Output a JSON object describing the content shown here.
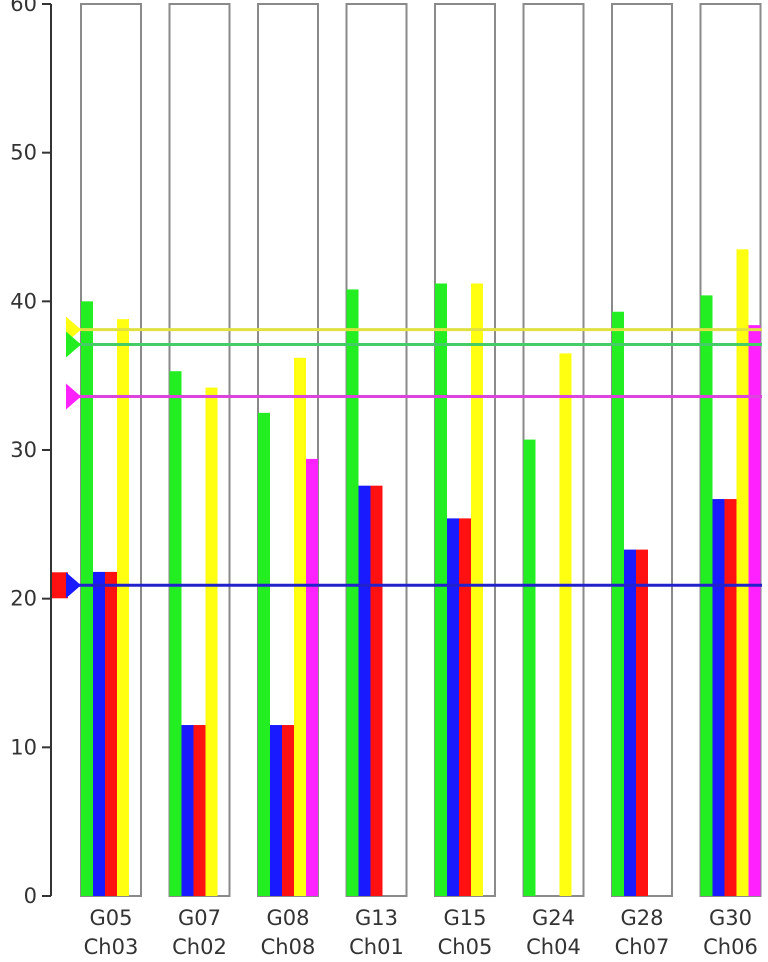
{
  "chart_data": {
    "type": "bar",
    "ylim": [
      0,
      60
    ],
    "yticks": [
      "0",
      "10",
      "20",
      "30",
      "40",
      "50",
      "60"
    ],
    "grid": false,
    "categories": [
      {
        "sat": "G05",
        "ch": "Ch03"
      },
      {
        "sat": "G07",
        "ch": "Ch02"
      },
      {
        "sat": "G08",
        "ch": "Ch08"
      },
      {
        "sat": "G13",
        "ch": "Ch01"
      },
      {
        "sat": "G15",
        "ch": "Ch05"
      },
      {
        "sat": "G24",
        "ch": "Ch04"
      },
      {
        "sat": "G28",
        "ch": "Ch07"
      },
      {
        "sat": "G30",
        "ch": "Ch06"
      }
    ],
    "series": [
      {
        "color": "#22ee22",
        "values": [
          40.0,
          35.3,
          32.5,
          40.8,
          41.2,
          30.7,
          39.3,
          40.4
        ]
      },
      {
        "color": "#1a1aff",
        "values": [
          21.8,
          11.5,
          11.5,
          27.6,
          25.4,
          null,
          23.3,
          26.7
        ]
      },
      {
        "color": "#ff1111",
        "values": [
          21.8,
          11.5,
          11.5,
          27.6,
          25.4,
          null,
          23.3,
          26.7
        ]
      },
      {
        "color": "#ffff11",
        "values": [
          38.8,
          34.2,
          36.2,
          null,
          41.2,
          36.5,
          null,
          43.5
        ]
      },
      {
        "color": "#ff22ff",
        "values": [
          null,
          null,
          29.4,
          null,
          null,
          null,
          null,
          38.4
        ]
      }
    ],
    "reference_lines": [
      {
        "color": "#e0e040",
        "value": 38.1
      },
      {
        "color": "#44cc66",
        "value": 37.1
      },
      {
        "color": "#dd44dd",
        "value": 33.6
      },
      {
        "color": "#2222cc",
        "value": 20.9
      }
    ],
    "markers": [
      {
        "color": "#ffff11",
        "value": 38.1
      },
      {
        "color": "#22ee22",
        "value": 37.1
      },
      {
        "color": "#ff22ff",
        "value": 33.6
      },
      {
        "color": "#ff1111",
        "value": 20.9,
        "shape": "square"
      },
      {
        "color": "#1a1aff",
        "value": 20.9
      }
    ]
  }
}
